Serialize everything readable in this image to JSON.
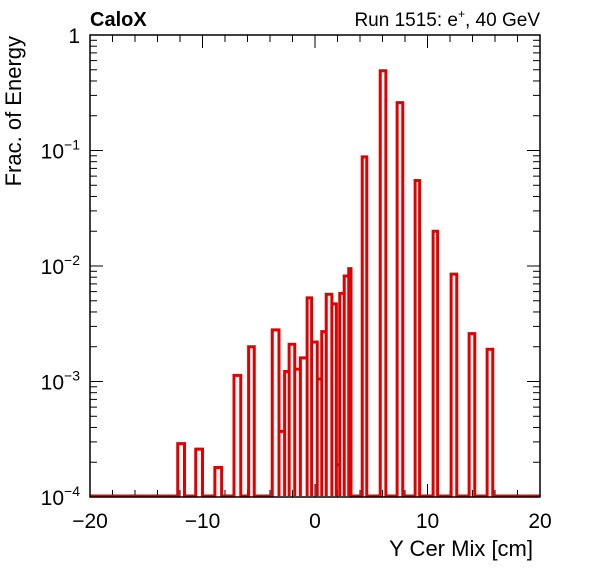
{
  "header": {
    "experiment": "CaloX",
    "run_info_prefix": "Run 1515: e",
    "run_info_sup": "+",
    "run_info_suffix": ", 40 GeV"
  },
  "chart_data": {
    "type": "step",
    "xlabel": "Y Cer Mix [cm]",
    "ylabel": "Frac. of Energy",
    "xlim": [
      -20,
      20
    ],
    "ylim": [
      0.0001,
      1
    ],
    "yscale": "log",
    "x_ticks": [
      {
        "v": -20,
        "label": "−20"
      },
      {
        "v": -10,
        "label": "−10"
      },
      {
        "v": 0,
        "label": "0"
      },
      {
        "v": 10,
        "label": "10"
      },
      {
        "v": 20,
        "label": "20"
      }
    ],
    "y_ticks": [
      {
        "v": 1,
        "base": "1",
        "exp": ""
      },
      {
        "v": 0.1,
        "base": "10",
        "exp": "−1"
      },
      {
        "v": 0.01,
        "base": "10",
        "exp": "−2"
      },
      {
        "v": 0.001,
        "base": "10",
        "exp": "−3"
      },
      {
        "v": 0.0001,
        "base": "10",
        "exp": "−4"
      }
    ],
    "line_color": "#e00000",
    "bins": [
      {
        "x0": -12.2,
        "x1": -11.6,
        "y": 0.00029
      },
      {
        "x0": -10.6,
        "x1": -10.0,
        "y": 0.00026
      },
      {
        "x0": -8.9,
        "x1": -8.3,
        "y": 0.00018
      },
      {
        "x0": -7.2,
        "x1": -6.6,
        "y": 0.00113
      },
      {
        "x0": -5.9,
        "x1": -5.4,
        "y": 0.002
      },
      {
        "x0": -3.8,
        "x1": -3.2,
        "y": 0.0028
      },
      {
        "x0": -3.2,
        "x1": -2.7,
        "y": 0.00037
      },
      {
        "x0": -2.7,
        "x1": -2.3,
        "y": 0.00122
      },
      {
        "x0": -2.3,
        "x1": -1.8,
        "y": 0.0021
      },
      {
        "x0": -1.8,
        "x1": -1.3,
        "y": 0.00128
      },
      {
        "x0": -1.3,
        "x1": -0.7,
        "y": 0.0016
      },
      {
        "x0": -0.7,
        "x1": -0.3,
        "y": 0.0053
      },
      {
        "x0": -0.3,
        "x1": 0.2,
        "y": 0.0022
      },
      {
        "x0": 0.2,
        "x1": 0.6,
        "y": 0.00105
      },
      {
        "x0": 0.6,
        "x1": 1.0,
        "y": 0.0027
      },
      {
        "x0": 1.0,
        "x1": 1.5,
        "y": 0.0057
      },
      {
        "x0": 1.5,
        "x1": 1.9,
        "y": 0.0047
      },
      {
        "x0": 1.9,
        "x1": 2.2,
        "y": 0.00019
      },
      {
        "x0": 2.2,
        "x1": 2.6,
        "y": 0.0058
      },
      {
        "x0": 2.6,
        "x1": 3.0,
        "y": 0.0082
      },
      {
        "x0": 3.0,
        "x1": 3.2,
        "y": 0.0095
      },
      {
        "x0": 4.2,
        "x1": 4.6,
        "y": 0.088
      },
      {
        "x0": 5.8,
        "x1": 6.3,
        "y": 0.49
      },
      {
        "x0": 7.3,
        "x1": 7.8,
        "y": 0.26
      },
      {
        "x0": 8.9,
        "x1": 9.3,
        "y": 0.055
      },
      {
        "x0": 10.5,
        "x1": 10.9,
        "y": 0.02
      },
      {
        "x0": 12.1,
        "x1": 12.6,
        "y": 0.0085
      },
      {
        "x0": 13.7,
        "x1": 14.2,
        "y": 0.0026
      },
      {
        "x0": 15.3,
        "x1": 15.8,
        "y": 0.0019
      }
    ]
  }
}
